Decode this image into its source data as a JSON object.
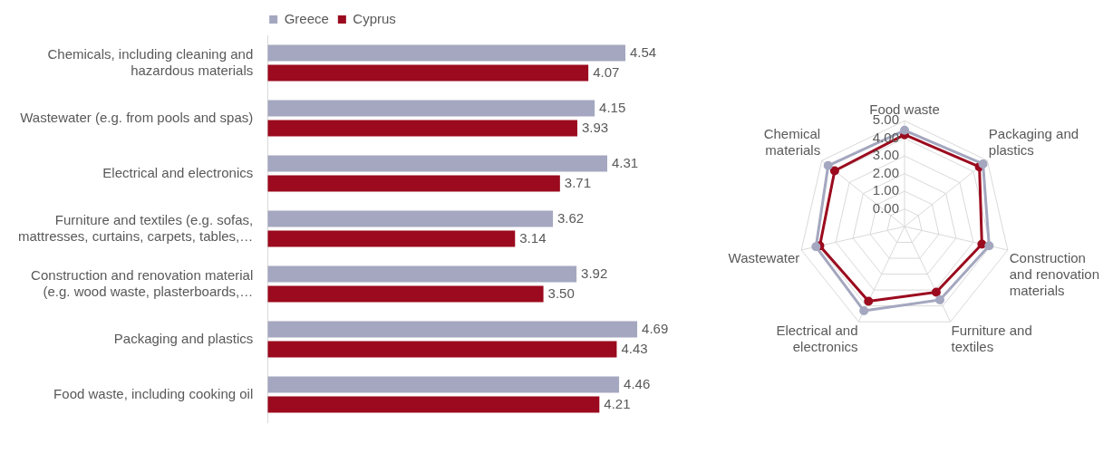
{
  "chart_data": [
    {
      "type": "bar",
      "orientation": "horizontal",
      "categories": [
        "Chemicals, including cleaning and hazardous materials",
        "Wastewater (e.g. from pools and spas)",
        "Electrical and electronics",
        "Furniture and textiles (e.g. sofas, mattresses, curtains, carpets, tables,…",
        "Construction and renovation material (e.g. wood waste, plasterboards,…",
        "Packaging and plastics",
        "Food waste, including cooking oil"
      ],
      "series": [
        {
          "name": "Greece",
          "color": "#a4a7bf",
          "values": [
            4.54,
            4.15,
            4.31,
            3.62,
            3.92,
            4.69,
            4.46
          ],
          "value_labels": [
            "4.54",
            "4.15",
            "4.31",
            "3.62",
            "3.92",
            "4.69",
            "4.46"
          ]
        },
        {
          "name": "Cyprus",
          "color": "#9b0a1e",
          "values": [
            4.07,
            3.93,
            3.71,
            3.14,
            3.5,
            4.43,
            4.21
          ],
          "value_labels": [
            "4.07",
            "3.93",
            "3.71",
            "3.14",
            "3.50",
            "4.43",
            "4.21"
          ]
        }
      ],
      "tick_labels": "y",
      "grid": false,
      "legend": "top"
    },
    {
      "type": "radar",
      "categories": [
        "Food waste",
        "Packaging and plastics",
        "Construction and renovation materials",
        "Furniture and textiles",
        "Electrical and electronics",
        "Wastewater",
        "Chemical materials"
      ],
      "series": [
        {
          "color": "#a4a7bf",
          "values": [
            4.46,
            4.69,
            3.92,
            3.62,
            4.31,
            4.15,
            4.54
          ]
        },
        {
          "color": "#9b0a1e",
          "values": [
            4.21,
            4.43,
            3.5,
            3.14,
            3.71,
            3.93,
            4.07
          ]
        }
      ],
      "ylim": [
        -1,
        5
      ],
      "yticks": [
        {
          "value": 0,
          "label": "0.00"
        },
        {
          "value": 1,
          "label": "1.00"
        },
        {
          "value": 2,
          "label": "2.00"
        },
        {
          "value": 3,
          "label": "3.00"
        },
        {
          "value": 4,
          "label": "4.00"
        },
        {
          "value": 5,
          "label": "5.00"
        }
      ],
      "grid": true,
      "legend": false,
      "marker": "circle"
    }
  ]
}
